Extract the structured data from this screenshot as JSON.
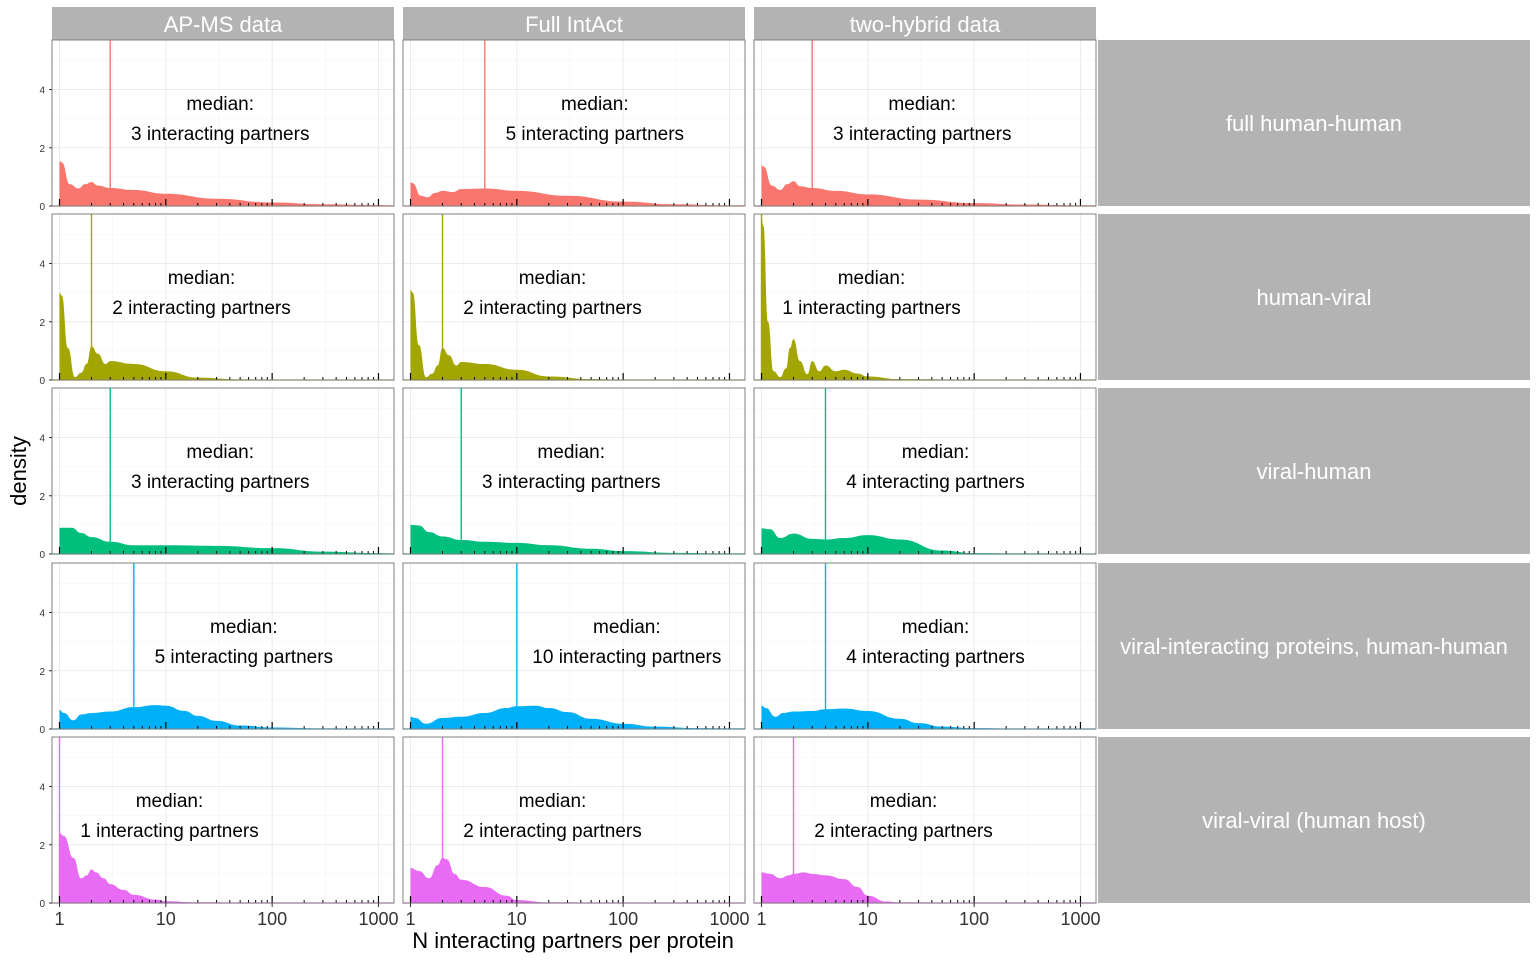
{
  "chart_data": {
    "type": "area",
    "subtype": "faceted density plot",
    "xlabel": "N interacting partners per protein",
    "ylabel": "density",
    "x_scale": "log10",
    "xlim": [
      0.85,
      1400
    ],
    "ylim": [
      0,
      5.7
    ],
    "x_ticks": [
      1,
      10,
      100,
      1000
    ],
    "x_tick_labels": [
      "1",
      "10",
      "100",
      "1000"
    ],
    "y_ticks": [
      0,
      2,
      4
    ],
    "y_tick_labels": [
      "0",
      "2",
      "4"
    ],
    "grid": true,
    "columns": [
      "AP-MS data",
      "Full IntAct",
      "two-hybrid data"
    ],
    "rows": [
      {
        "name": "full human-human",
        "color": "#F8766D"
      },
      {
        "name": "human-viral",
        "color": "#A3A500"
      },
      {
        "name": "viral-human",
        "color": "#00BF7D"
      },
      {
        "name": "viral-interacting proteins, human-human",
        "color": "#00B0F6"
      },
      {
        "name": "viral-viral (human host)",
        "color": "#E76BF3"
      }
    ],
    "median_title": "median:",
    "panels": [
      [
        {
          "median": 3,
          "median_label": "3 interacting partners",
          "x": [
            1,
            1.05,
            1.25,
            1.5,
            1.75,
            2,
            2.3,
            3,
            5,
            10,
            30,
            100,
            300,
            1000,
            1400
          ],
          "y": [
            1.55,
            1.5,
            0.75,
            0.6,
            0.75,
            0.82,
            0.7,
            0.62,
            0.55,
            0.42,
            0.25,
            0.12,
            0.06,
            0.03,
            0.02
          ]
        },
        {
          "median": 5,
          "median_label": "5 interacting partners",
          "x": [
            1,
            1.05,
            1.25,
            1.45,
            1.7,
            2,
            2.5,
            3,
            5,
            10,
            30,
            100,
            300,
            1000,
            1400
          ],
          "y": [
            0.82,
            0.78,
            0.35,
            0.3,
            0.45,
            0.52,
            0.48,
            0.58,
            0.6,
            0.52,
            0.35,
            0.15,
            0.06,
            0.02,
            0.02
          ]
        },
        {
          "median": 3,
          "median_label": "3 interacting partners",
          "x": [
            1,
            1.05,
            1.25,
            1.5,
            1.75,
            2,
            2.3,
            3,
            5,
            10,
            30,
            100,
            300,
            1000,
            1400
          ],
          "y": [
            1.4,
            1.35,
            0.7,
            0.55,
            0.75,
            0.85,
            0.68,
            0.62,
            0.52,
            0.4,
            0.22,
            0.1,
            0.05,
            0.02,
            0.02
          ]
        }
      ],
      [
        {
          "median": 2,
          "median_label": "2 interacting partners",
          "x": [
            1,
            1.05,
            1.2,
            1.4,
            1.6,
            1.8,
            2,
            2.3,
            2.7,
            3,
            5,
            10,
            20,
            50,
            100,
            1000,
            1400
          ],
          "y": [
            3.0,
            2.9,
            1.1,
            0.1,
            0.25,
            0.55,
            1.15,
            0.9,
            0.55,
            0.65,
            0.55,
            0.3,
            0.08,
            0.02,
            0.01,
            0.01,
            0.01
          ]
        },
        {
          "median": 2,
          "median_label": "2 interacting partners",
          "x": [
            1,
            1.05,
            1.2,
            1.4,
            1.6,
            1.8,
            2,
            2.3,
            2.7,
            3,
            5,
            10,
            20,
            50,
            100,
            1000,
            1400
          ],
          "y": [
            3.1,
            3.0,
            1.2,
            0.1,
            0.22,
            0.5,
            1.1,
            0.85,
            0.5,
            0.62,
            0.55,
            0.35,
            0.12,
            0.03,
            0.01,
            0.01,
            0.01
          ]
        },
        {
          "median": 1,
          "median_label": "1 interacting partners",
          "x": [
            1,
            1.04,
            1.15,
            1.3,
            1.5,
            1.7,
            1.85,
            2,
            2.3,
            2.7,
            3,
            3.5,
            4,
            5,
            6,
            8,
            10,
            20,
            100,
            1000,
            1400
          ],
          "y": [
            5.6,
            5.3,
            2.0,
            0.3,
            0.1,
            0.4,
            1.1,
            1.4,
            0.65,
            0.2,
            0.65,
            0.3,
            0.5,
            0.3,
            0.35,
            0.22,
            0.12,
            0.03,
            0.01,
            0.01,
            0.01
          ]
        }
      ],
      [
        {
          "median": 3,
          "median_label": "3 interacting partners",
          "x": [
            1,
            1.3,
            1.6,
            2,
            3,
            5,
            10,
            30,
            100,
            300,
            1000,
            1400
          ],
          "y": [
            0.9,
            0.9,
            0.72,
            0.58,
            0.42,
            0.3,
            0.3,
            0.28,
            0.2,
            0.08,
            0.03,
            0.02
          ]
        },
        {
          "median": 3,
          "median_label": "3 interacting partners",
          "x": [
            1,
            1.2,
            1.5,
            2,
            3,
            5,
            10,
            20,
            50,
            100,
            300,
            1000,
            1400
          ],
          "y": [
            1.0,
            0.98,
            0.75,
            0.6,
            0.48,
            0.42,
            0.38,
            0.3,
            0.18,
            0.1,
            0.04,
            0.02,
            0.02
          ]
        },
        {
          "median": 4,
          "median_label": "4 interacting partners",
          "x": [
            1,
            1.2,
            1.5,
            2,
            3,
            4,
            6,
            10,
            20,
            50,
            100,
            300,
            1000,
            1400
          ],
          "y": [
            0.88,
            0.85,
            0.55,
            0.7,
            0.52,
            0.5,
            0.55,
            0.65,
            0.5,
            0.12,
            0.03,
            0.02,
            0.01,
            0.01
          ]
        }
      ],
      [
        {
          "median": 5,
          "median_label": "5 interacting partners",
          "x": [
            1,
            1.1,
            1.35,
            1.6,
            2,
            3,
            5,
            8,
            10,
            15,
            20,
            30,
            50,
            100,
            300,
            1000,
            1400
          ],
          "y": [
            0.65,
            0.55,
            0.3,
            0.5,
            0.55,
            0.6,
            0.75,
            0.82,
            0.8,
            0.62,
            0.45,
            0.28,
            0.12,
            0.05,
            0.02,
            0.01,
            0.01
          ]
        },
        {
          "median": 10,
          "median_label": "10 interacting partners",
          "x": [
            1,
            1.1,
            1.4,
            2,
            3,
            5,
            8,
            10,
            15,
            20,
            30,
            50,
            100,
            200,
            500,
            1000,
            1400
          ],
          "y": [
            0.42,
            0.38,
            0.18,
            0.38,
            0.42,
            0.55,
            0.72,
            0.78,
            0.8,
            0.72,
            0.58,
            0.35,
            0.18,
            0.08,
            0.03,
            0.02,
            0.02
          ]
        },
        {
          "median": 4,
          "median_label": "4 interacting partners",
          "x": [
            1,
            1.1,
            1.35,
            1.6,
            2,
            3,
            4,
            6,
            10,
            20,
            30,
            50,
            100,
            300,
            1000,
            1400
          ],
          "y": [
            0.8,
            0.72,
            0.42,
            0.55,
            0.6,
            0.62,
            0.68,
            0.7,
            0.62,
            0.35,
            0.2,
            0.08,
            0.03,
            0.01,
            0.01,
            0.01
          ]
        }
      ],
      [
        {
          "median": 1,
          "median_label": "1 interacting partners",
          "x": [
            1,
            1.1,
            1.35,
            1.6,
            1.8,
            2,
            2.2,
            2.6,
            3,
            4,
            5,
            8,
            10,
            20,
            100,
            1000,
            1400
          ],
          "y": [
            2.4,
            2.3,
            1.55,
            0.85,
            0.95,
            1.15,
            1.05,
            0.85,
            0.65,
            0.45,
            0.28,
            0.12,
            0.06,
            0.02,
            0.01,
            0.01,
            0.01
          ]
        },
        {
          "median": 2,
          "median_label": "2 interacting partners",
          "x": [
            1,
            1.2,
            1.5,
            1.8,
            2,
            2.2,
            2.6,
            3,
            5,
            8,
            10,
            20,
            100,
            1000,
            1400
          ],
          "y": [
            1.2,
            1.1,
            0.85,
            1.3,
            1.55,
            1.5,
            1.0,
            0.8,
            0.55,
            0.25,
            0.1,
            0.02,
            0.01,
            0.01,
            0.01
          ]
        },
        {
          "median": 2,
          "median_label": "2 interacting partners",
          "x": [
            1,
            1.2,
            1.5,
            1.8,
            2,
            2.5,
            3,
            4,
            6,
            8,
            10,
            15,
            20,
            100,
            1000,
            1400
          ],
          "y": [
            1.05,
            1.0,
            0.85,
            0.95,
            1.0,
            1.05,
            1.0,
            0.95,
            0.82,
            0.55,
            0.25,
            0.05,
            0.02,
            0.01,
            0.01,
            0.01
          ]
        }
      ]
    ]
  }
}
